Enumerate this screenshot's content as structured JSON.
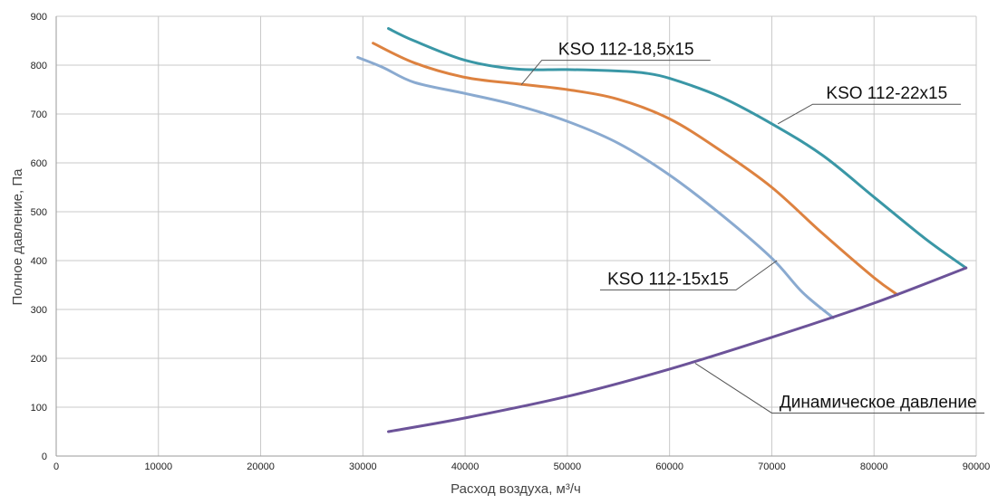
{
  "chart_data": {
    "type": "line",
    "xlabel": "Расход воздуха, м³/ч",
    "ylabel": "Полное давление, Па",
    "xlim": [
      0,
      90000
    ],
    "ylim": [
      0,
      900
    ],
    "x_ticks": [
      0,
      10000,
      20000,
      30000,
      40000,
      50000,
      60000,
      70000,
      80000,
      90000
    ],
    "y_ticks": [
      0,
      100,
      200,
      300,
      400,
      500,
      600,
      700,
      800,
      900
    ],
    "grid": true,
    "legend": "callout labels",
    "series": [
      {
        "name": "KSO 112-22x15",
        "color": "#3a97a6",
        "points": [
          [
            32500,
            875
          ],
          [
            35000,
            850
          ],
          [
            40000,
            810
          ],
          [
            45000,
            792
          ],
          [
            50000,
            791
          ],
          [
            55000,
            788
          ],
          [
            57500,
            784
          ],
          [
            60000,
            773
          ],
          [
            65000,
            735
          ],
          [
            70000,
            680
          ],
          [
            75000,
            615
          ],
          [
            80000,
            530
          ],
          [
            85000,
            445
          ],
          [
            89000,
            385
          ]
        ]
      },
      {
        "name": "KSO 112-18,5x15",
        "color": "#dd8240",
        "points": [
          [
            31000,
            845
          ],
          [
            35000,
            805
          ],
          [
            40000,
            775
          ],
          [
            45000,
            762
          ],
          [
            50000,
            750
          ],
          [
            55000,
            730
          ],
          [
            60000,
            690
          ],
          [
            65000,
            625
          ],
          [
            70000,
            550
          ],
          [
            75000,
            455
          ],
          [
            80000,
            365
          ],
          [
            82300,
            330
          ]
        ]
      },
      {
        "name": "KSO 112-15x15",
        "color": "#8aaad0",
        "points": [
          [
            29500,
            816
          ],
          [
            32000,
            795
          ],
          [
            35000,
            765
          ],
          [
            40000,
            742
          ],
          [
            45000,
            718
          ],
          [
            50000,
            685
          ],
          [
            55000,
            640
          ],
          [
            60000,
            575
          ],
          [
            65000,
            495
          ],
          [
            70000,
            405
          ],
          [
            73000,
            335
          ],
          [
            76000,
            283
          ]
        ]
      },
      {
        "name": "Динамическое давление",
        "color": "#6c5399",
        "points": [
          [
            32500,
            50
          ],
          [
            40000,
            78
          ],
          [
            50000,
            122
          ],
          [
            60000,
            178
          ],
          [
            70000,
            243
          ],
          [
            80000,
            313
          ],
          [
            89000,
            385
          ]
        ]
      }
    ],
    "annotations": [
      {
        "text": "KSO 112-18,5x15",
        "anchor": [
          45500,
          760
        ],
        "elbow": [
          47500,
          810
        ],
        "line_end": [
          64000,
          810
        ]
      },
      {
        "text": "KSO 112-22x15",
        "anchor": [
          70600,
          680
        ],
        "elbow": [
          74000,
          720
        ],
        "line_end": [
          88500,
          720
        ]
      },
      {
        "text": "KSO 112-15x15",
        "anchor": [
          70500,
          400
        ],
        "elbow": [
          66500,
          340
        ],
        "line_end": [
          53200,
          340
        ]
      },
      {
        "text": "Динамическое давление",
        "anchor": [
          62500,
          190
        ],
        "elbow": [
          70000,
          88
        ],
        "line_end": [
          90800,
          88
        ]
      }
    ]
  }
}
